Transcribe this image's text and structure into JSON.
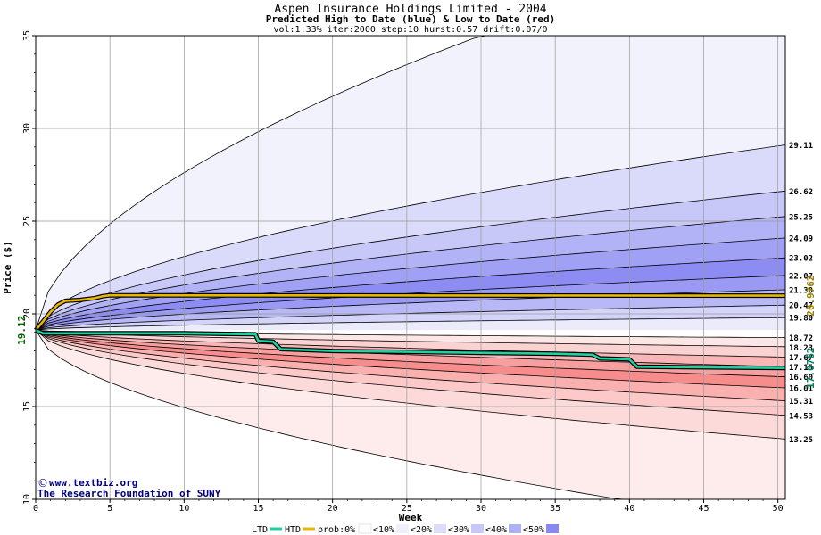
{
  "chart_data": {
    "type": "area",
    "title": "Aspen Insurance Holdings Limited - 2004",
    "subtitle": "Predicted High to Date (blue) &  Low to Date (red)",
    "params": "vol:1.33% iter:2000 step:10 hurst:0.57 drift:0.07/0",
    "xlabel": "Week",
    "ylabel": "Price ($)",
    "xlim": [
      0,
      50.5
    ],
    "ylim": [
      10,
      35
    ],
    "x_ticks": [
      0,
      5,
      10,
      15,
      20,
      25,
      30,
      35,
      40,
      45,
      50
    ],
    "y_ticks": [
      10,
      15,
      20,
      25,
      30,
      35
    ],
    "start_price": 19.12,
    "start_label": "19.12",
    "grid": true,
    "credit": {
      "site": "www.textbiz.org",
      "org": "The Research Foundation of SUNY"
    },
    "high_bands": [
      {
        "end": 29.11,
        "label": "29.11"
      },
      {
        "end": 26.62,
        "label": "26.62"
      },
      {
        "end": 25.25,
        "label": "25.25"
      },
      {
        "end": 24.09,
        "label": "24.09"
      },
      {
        "end": 23.02,
        "label": "23.02"
      },
      {
        "end": 22.07,
        "label": "22.07"
      },
      {
        "end": 21.3,
        "label": "21.30"
      },
      {
        "end": 20.47,
        "label": "20.47"
      },
      {
        "end": 19.8,
        "label": "19.80"
      }
    ],
    "low_bands": [
      {
        "end": 18.72,
        "label": "18.72"
      },
      {
        "end": 18.23,
        "label": "18.23"
      },
      {
        "end": 17.67,
        "label": "17.67"
      },
      {
        "end": 17.15,
        "label": "17.15"
      },
      {
        "end": 16.6,
        "label": "16.60"
      },
      {
        "end": 16.01,
        "label": "16.01"
      },
      {
        "end": 15.31,
        "label": "15.31"
      },
      {
        "end": 14.53,
        "label": "14.53"
      },
      {
        "end": 13.25,
        "label": "13.25"
      }
    ],
    "outer_high_end": 40.5,
    "outer_low_end": 8.6,
    "htd": {
      "label": "20.9762",
      "points": [
        [
          0,
          19.12
        ],
        [
          0.5,
          19.6
        ],
        [
          1,
          20.1
        ],
        [
          1.5,
          20.5
        ],
        [
          2,
          20.7
        ],
        [
          3,
          20.75
        ],
        [
          4,
          20.85
        ],
        [
          4.5,
          20.95
        ],
        [
          5,
          21.0
        ],
        [
          50.5,
          20.98
        ]
      ]
    },
    "ltd": {
      "label": "17.0762",
      "points": [
        [
          0,
          19.12
        ],
        [
          0.5,
          18.95
        ],
        [
          1,
          18.95
        ],
        [
          10,
          18.95
        ],
        [
          14.8,
          18.9
        ],
        [
          15,
          18.55
        ],
        [
          16,
          18.5
        ],
        [
          16.5,
          18.1
        ],
        [
          20,
          18.0
        ],
        [
          25,
          17.95
        ],
        [
          30,
          17.9
        ],
        [
          35,
          17.85
        ],
        [
          37.5,
          17.8
        ],
        [
          38,
          17.6
        ],
        [
          40,
          17.55
        ],
        [
          40.5,
          17.15
        ],
        [
          50.5,
          17.08
        ]
      ]
    },
    "legend": {
      "ltd": "LTD",
      "htd": "HTD",
      "prob": "prob:0%",
      "items": [
        "<10%",
        "<20%",
        "<30%",
        "<40%",
        "<50%"
      ]
    },
    "colors": {
      "htd": "#e8b800",
      "ltd": "#20d0a0",
      "htd_label": "#a08000",
      "ltd_label": "#008060",
      "start_label": "#006000",
      "high_fills": [
        "#f2f2fc",
        "#dadafa",
        "#c8c8f8",
        "#b2b2f6",
        "#a0a0f4",
        "#8c8cf2",
        "#9a9af4",
        "#b8b8f6",
        "#d4d4fa",
        "#ebebfc"
      ],
      "low_fills": [
        "#ffffff",
        "#fde6e6",
        "#fbd2d2",
        "#f9b6b6",
        "#f79e9e",
        "#f68c8c",
        "#fbb0b0",
        "#fcc8c8",
        "#fddada",
        "#feecec"
      ],
      "legend_swatches": [
        "#ffffff",
        "#f0f0fc",
        "#dcdcfa",
        "#c8c8f8",
        "#b0b0f4",
        "#8888f0"
      ]
    }
  }
}
